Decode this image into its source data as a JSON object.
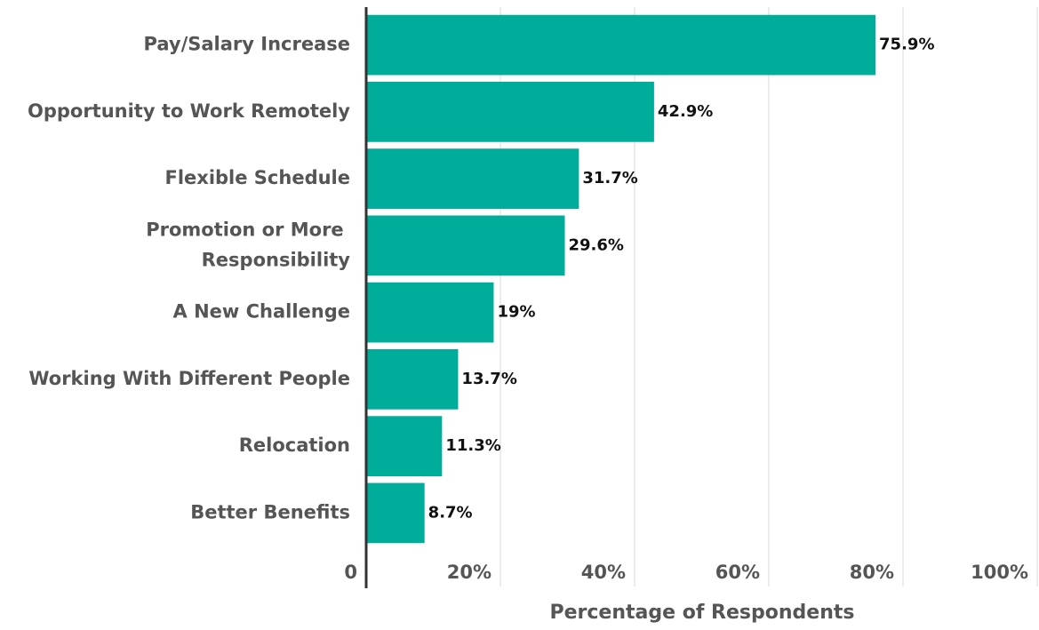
{
  "chart_data": {
    "type": "barh",
    "categories": [
      "Pay/Salary Increase",
      "Opportunity to Work Remotely",
      "Flexible Schedule",
      "Promotion or More Responsibility",
      "A New Challenge",
      "Working With Different People",
      "Relocation",
      "Better Benefits"
    ],
    "values": [
      75.9,
      42.9,
      31.7,
      29.6,
      19,
      13.7,
      11.3,
      8.7
    ],
    "value_labels": [
      "75.9%",
      "42.9%",
      "31.7%",
      "29.6%",
      "19%",
      "13.7%",
      "11.3%",
      "8.7%"
    ],
    "color": "#00ad9a",
    "xlim": [
      0,
      100
    ],
    "xticks": [
      0,
      {
        "value": 20,
        "label": "20%"
      },
      {
        "value": 40,
        "label": "40%"
      },
      {
        "value": 60,
        "label": "60%"
      },
      {
        "value": 80,
        "label": "80%"
      },
      {
        "value": 100,
        "label": "100%"
      }
    ],
    "xlabel": "Percentage of Respondents",
    "grid": true
  }
}
